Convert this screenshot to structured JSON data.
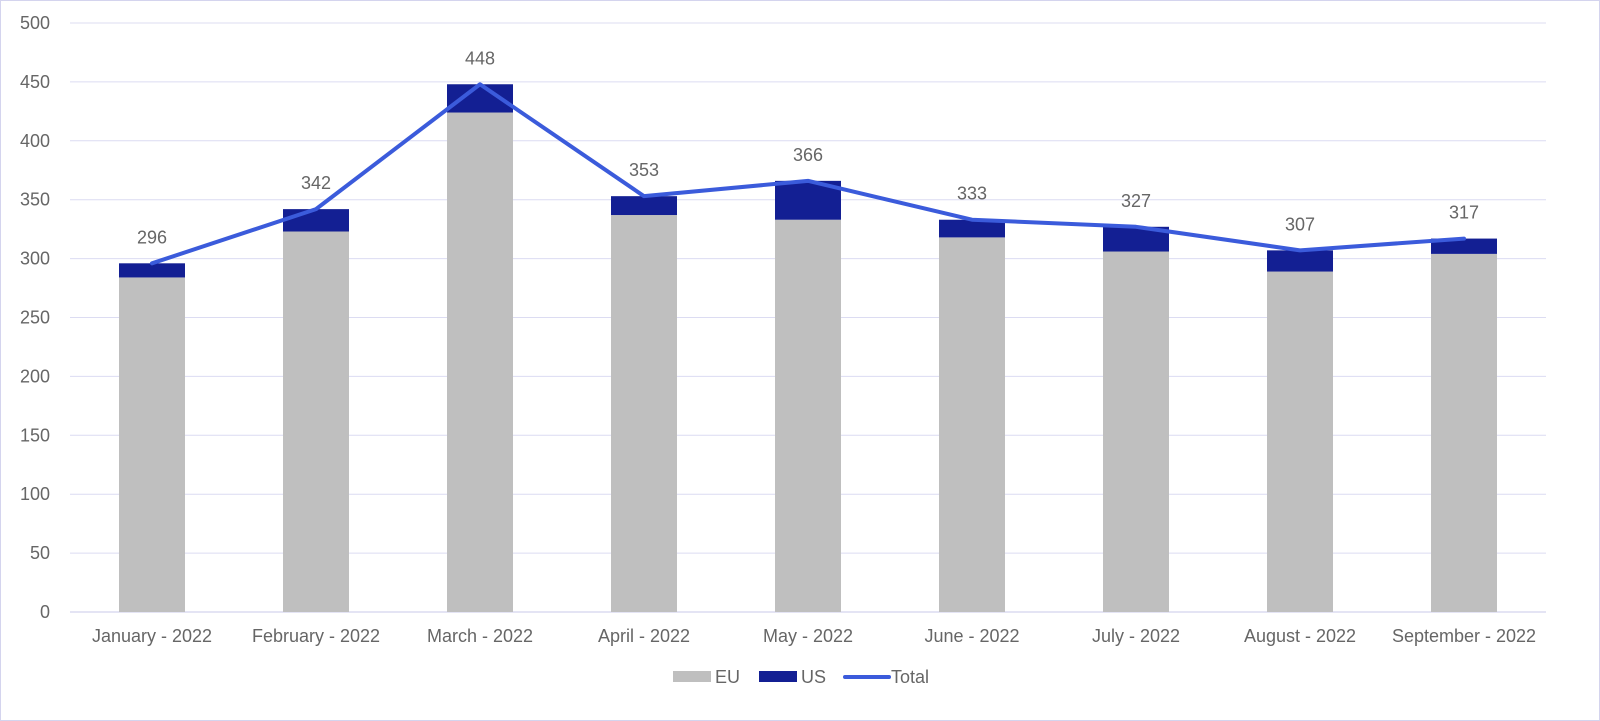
{
  "chart_data": {
    "type": "bar",
    "stacked": true,
    "categories": [
      "January - 2022",
      "February - 2022",
      "March - 2022",
      "April - 2022",
      "May - 2022",
      "June - 2022",
      "July - 2022",
      "August - 2022",
      "September - 2022"
    ],
    "series": [
      {
        "name": "EU",
        "type": "bar",
        "color": "#bfbfbf",
        "values": [
          284,
          323,
          424,
          337,
          333,
          318,
          306,
          289,
          304
        ]
      },
      {
        "name": "US",
        "type": "bar",
        "color": "#131f93",
        "values": [
          12,
          19,
          24,
          16,
          33,
          15,
          21,
          18,
          13
        ]
      },
      {
        "name": "Total",
        "type": "line",
        "color": "#3b5bdb",
        "values": [
          296,
          342,
          448,
          353,
          366,
          333,
          327,
          307,
          317
        ]
      }
    ],
    "data_labels": [
      "296",
      "342",
      "448",
      "353",
      "366",
      "333",
      "327",
      "307",
      "317"
    ],
    "y_ticks": [
      "0",
      "50",
      "100",
      "150",
      "200",
      "250",
      "300",
      "350",
      "400",
      "450",
      "500"
    ],
    "ylim": [
      0,
      500
    ],
    "grid": true,
    "legend_position": "bottom-center",
    "title": "",
    "xlabel": "",
    "ylabel": ""
  }
}
